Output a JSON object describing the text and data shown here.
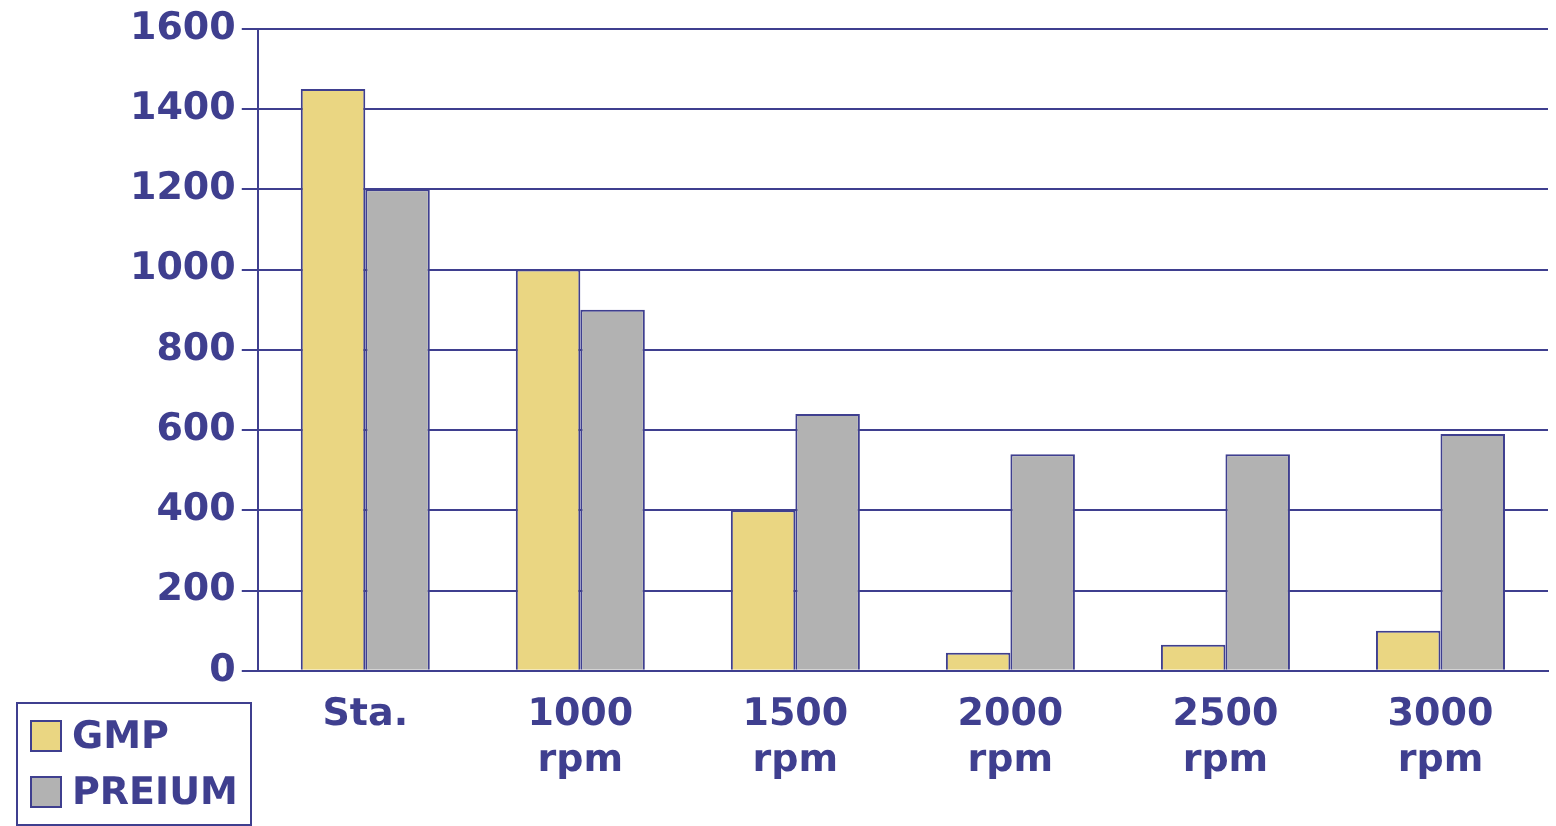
{
  "chart_data": {
    "type": "bar",
    "categories": [
      "Sta.",
      "1000 rpm",
      "1500 rpm",
      "2000 rpm",
      "2500 rpm",
      "3000 rpm"
    ],
    "series": [
      {
        "name": "GMP",
        "color": "#ead682",
        "values": [
          1450,
          1000,
          400,
          45,
          65,
          100
        ]
      },
      {
        "name": "PREIUM",
        "color": "#b2b2b2",
        "values": [
          1200,
          900,
          640,
          540,
          540,
          590
        ]
      }
    ],
    "ylim": [
      0,
      1600
    ],
    "yticks": [
      0,
      200,
      400,
      600,
      800,
      1000,
      1200,
      1400,
      1600
    ],
    "grid": "y",
    "legend": "bottom left"
  }
}
